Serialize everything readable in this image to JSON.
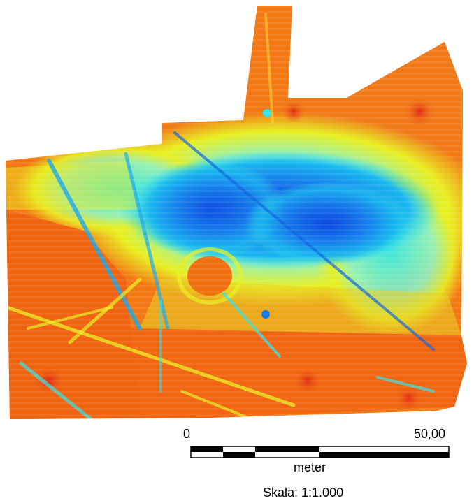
{
  "map": {
    "colors": {
      "low": "#0a3fe0",
      "mid_low": "#18b8f0",
      "mid": "#30e4e8",
      "mid_high": "#e8f020",
      "high": "#f8b818",
      "very_high": "#f06010",
      "max": "#e02810",
      "background": "#ffffff"
    }
  },
  "scale_bar": {
    "start_label": "0",
    "end_label": "50,00",
    "unit_label": "meter",
    "ratio_label": "Skala: 1:1.000"
  }
}
